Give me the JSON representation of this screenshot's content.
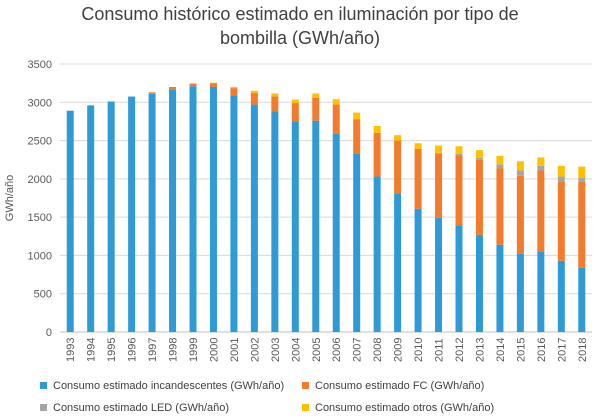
{
  "chart_data": {
    "type": "bar",
    "stacked": true,
    "title_lines": [
      "Consumo histórico estimado en iluminación por tipo de",
      "bombilla (GWh/año)"
    ],
    "xlabel": "",
    "ylabel": "GWh/año",
    "ylim": [
      0,
      3500
    ],
    "yticks": [
      0,
      500,
      1000,
      1500,
      2000,
      2500,
      3000,
      3500
    ],
    "grid": true,
    "legend_position": "bottom",
    "categories": [
      "1993",
      "1994",
      "1995",
      "1996",
      "1997",
      "1998",
      "1999",
      "2000",
      "2001",
      "2002",
      "2003",
      "2004",
      "2005",
      "2006",
      "2007",
      "2008",
      "2009",
      "2010",
      "2011",
      "2012",
      "2013",
      "2014",
      "2015",
      "2016",
      "2017",
      "2018"
    ],
    "series": [
      {
        "name": "Consumo estimado incandescentes (GWh/año)",
        "color": "#2E9BD6",
        "values": [
          2890,
          2960,
          3010,
          3075,
          3110,
          3170,
          3210,
          3200,
          3090,
          2970,
          2880,
          2750,
          2760,
          2590,
          2330,
          2030,
          1810,
          1610,
          1490,
          1390,
          1270,
          1140,
          1020,
          1050,
          930,
          840
        ]
      },
      {
        "name": "Consumo estimado FC (GWh/año)",
        "color": "#F47B2B",
        "values": [
          0,
          0,
          0,
          0,
          20,
          30,
          35,
          50,
          95,
          150,
          195,
          240,
          300,
          380,
          450,
          570,
          690,
          780,
          840,
          920,
          980,
          1000,
          1020,
          1060,
          1040,
          1120
        ]
      },
      {
        "name": "Consumo estimado LED (GWh/año)",
        "color": "#A5A5A5",
        "values": [
          0,
          0,
          0,
          0,
          0,
          0,
          0,
          0,
          0,
          0,
          0,
          0,
          0,
          0,
          0,
          0,
          0,
          0,
          10,
          15,
          25,
          50,
          70,
          60,
          60,
          50
        ]
      },
      {
        "name": "Consumo estimado otros (GWh/año)",
        "color": "#FFC000",
        "values": [
          0,
          0,
          0,
          0,
          0,
          0,
          0,
          5,
          15,
          30,
          40,
          45,
          55,
          70,
          85,
          90,
          70,
          75,
          95,
          100,
          100,
          110,
          120,
          110,
          140,
          150
        ]
      }
    ]
  }
}
